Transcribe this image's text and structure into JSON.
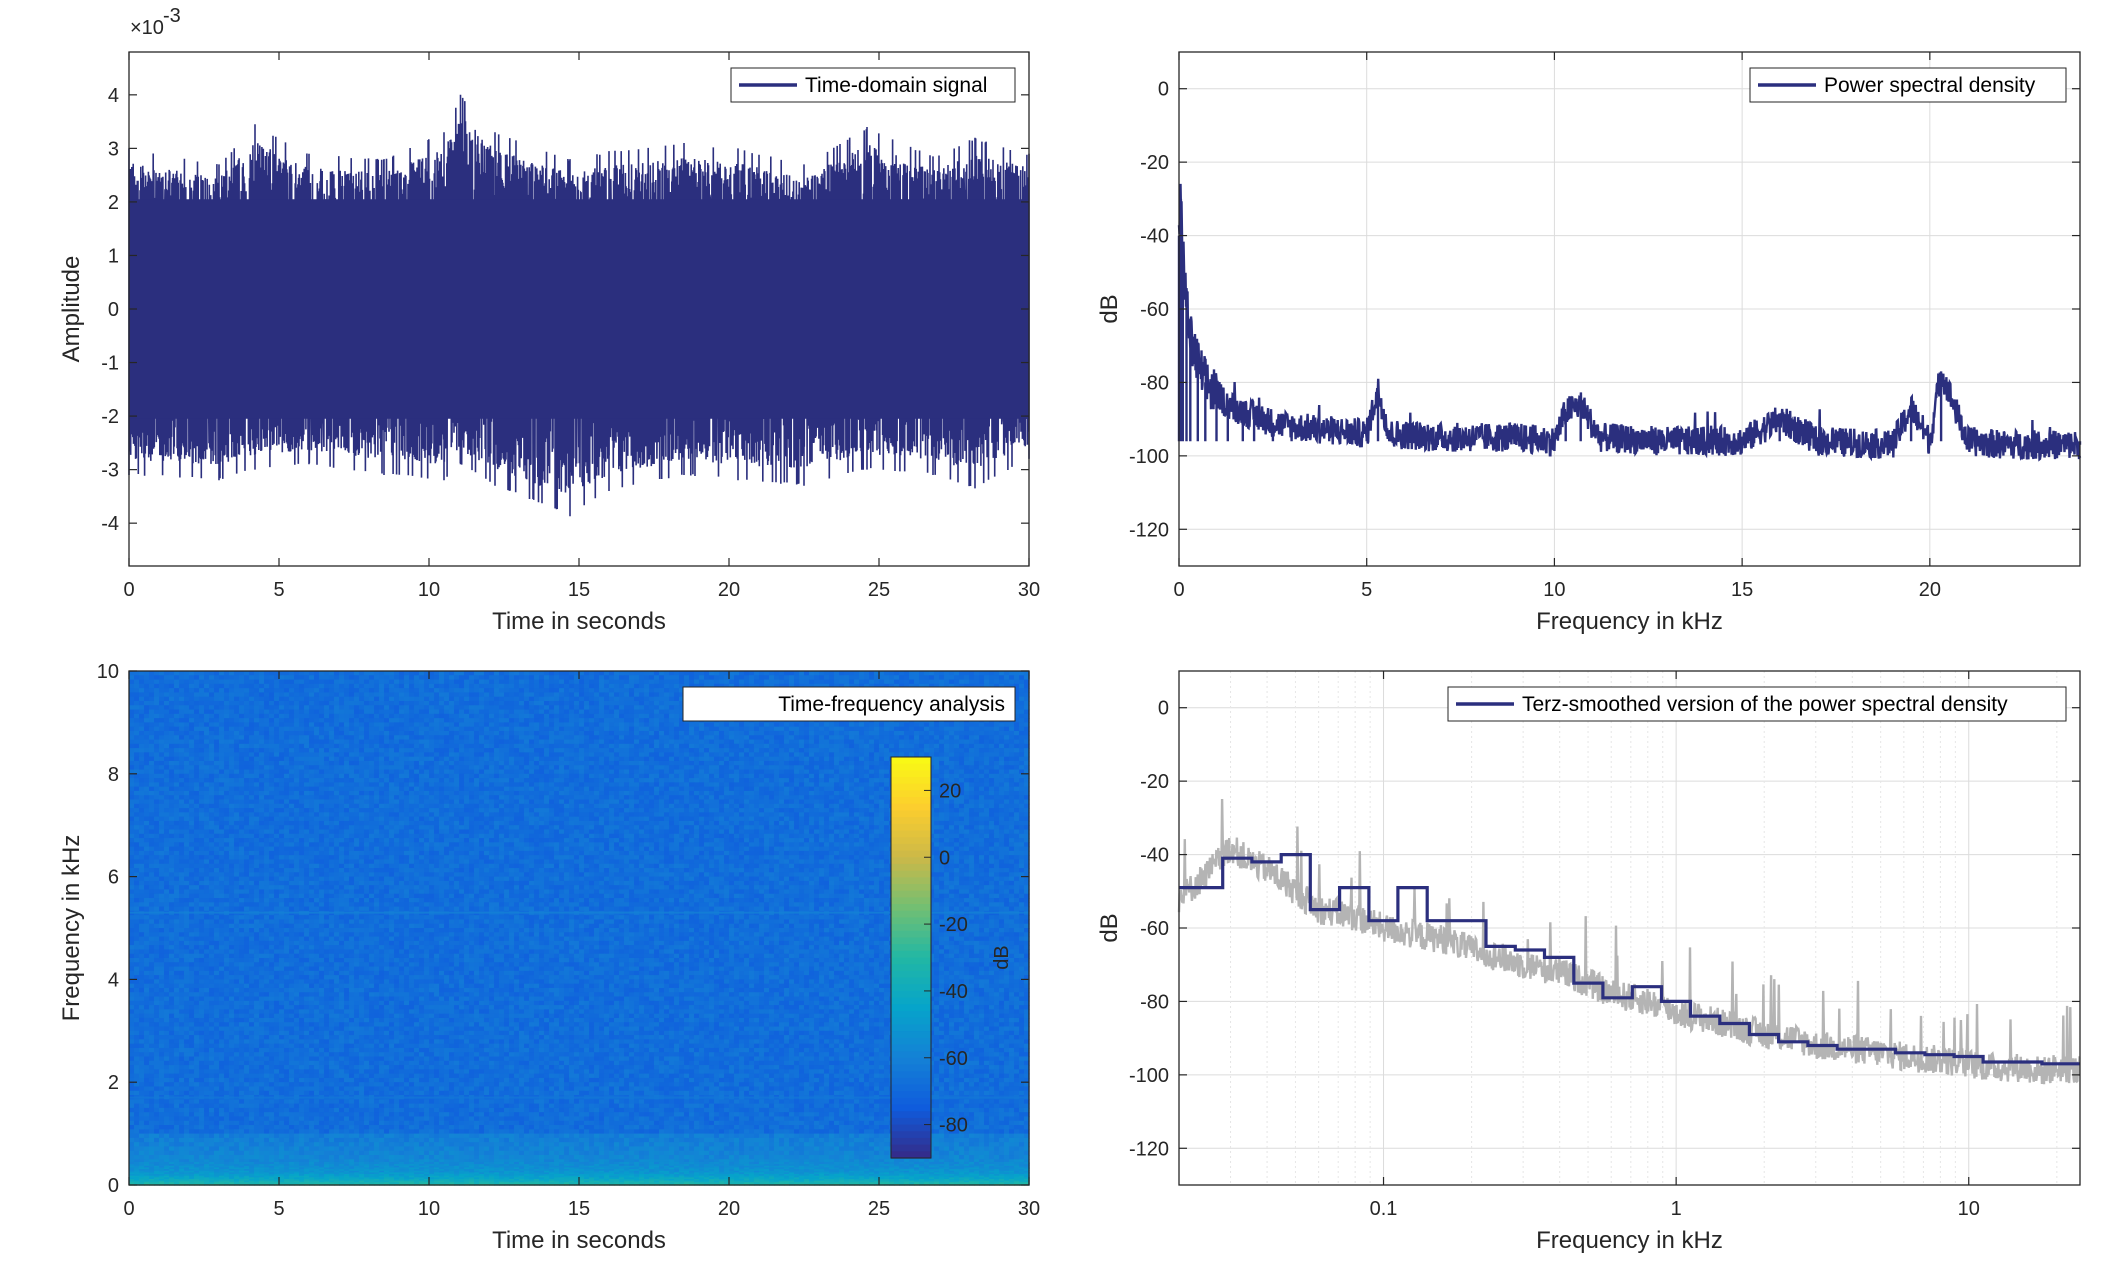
{
  "colors": {
    "series": "#2b2f7e",
    "raw": "#b4b4b4",
    "axis": "#262626",
    "grid": "#dcdcdc"
  },
  "chart_data": [
    {
      "type": "line",
      "legend": [
        "Time-domain signal"
      ],
      "xlabel": "Time in seconds",
      "ylabel": "Amplitude",
      "exponent_label": "×10",
      "exponent_power": "-3",
      "xlim": [
        0,
        30
      ],
      "ylim": [
        -4.8,
        4.8
      ],
      "xticks": [
        0,
        5,
        10,
        15,
        20,
        25,
        30
      ],
      "yticks": [
        -4,
        -3,
        -2,
        -1,
        0,
        1,
        2,
        3,
        4
      ],
      "grid": false,
      "legend_position": "top-right",
      "series": [
        {
          "name": "Time-domain signal",
          "envelope": "dense noise",
          "x": [
            0,
            3,
            4.2,
            6,
            8.5,
            10.5,
            11.05,
            12.2,
            14.7,
            16,
            18.5,
            20.3,
            22.5,
            24.6,
            26.8,
            28.2,
            30
          ],
          "upper": [
            3.0,
            2.7,
            3.45,
            2.9,
            2.8,
            3.3,
            4.0,
            3.3,
            2.8,
            2.95,
            3.1,
            3.0,
            2.7,
            3.4,
            2.85,
            3.2,
            2.9
          ],
          "lower": [
            -3.1,
            -3.2,
            -3.0,
            -2.9,
            -3.1,
            -3.2,
            -2.9,
            -3.3,
            -3.87,
            -3.4,
            -3.1,
            -3.2,
            -3.3,
            -3.0,
            -3.1,
            -3.35,
            -2.8
          ]
        }
      ]
    },
    {
      "type": "line",
      "legend": [
        "Power spectral density"
      ],
      "xlabel": "Frequency in kHz",
      "ylabel": "dB",
      "xlim": [
        0,
        24
      ],
      "ylim": [
        -130,
        10
      ],
      "xticks": [
        0,
        5,
        10,
        15,
        20
      ],
      "yticks": [
        0,
        -20,
        -40,
        -60,
        -80,
        -100,
        -120
      ],
      "grid": true,
      "legend_position": "top-right",
      "series": [
        {
          "name": "Power spectral density",
          "x": [
            0,
            0.05,
            0.1,
            0.2,
            0.3,
            0.5,
            0.7,
            1.0,
            1.3,
            1.7,
            2.0,
            2.5,
            3,
            4,
            5,
            5.3,
            5.6,
            7,
            9,
            10.0,
            10.3,
            10.7,
            11.2,
            13,
            15,
            16.0,
            17,
            19.0,
            19.5,
            20.0,
            20.3,
            21,
            22,
            24
          ],
          "y": [
            -40,
            -30,
            -45,
            -58,
            -68,
            -75,
            -80,
            -83,
            -86,
            -88,
            -89,
            -91,
            -92,
            -93,
            -94,
            -82,
            -94,
            -95,
            -95,
            -96,
            -88,
            -86,
            -95,
            -96,
            -96,
            -90,
            -96,
            -97,
            -87,
            -96,
            -77,
            -96,
            -97,
            -97
          ]
        }
      ]
    },
    {
      "type": "heatmap",
      "legend": [
        "Time-frequency analysis"
      ],
      "xlabel": "Time in seconds",
      "ylabel": "Frequency in kHz",
      "colorbar_label": "dB",
      "xlim": [
        0,
        30
      ],
      "ylim": [
        0,
        10
      ],
      "xticks": [
        0,
        5,
        10,
        15,
        20,
        25,
        30
      ],
      "yticks": [
        0,
        2,
        4,
        6,
        8,
        10
      ],
      "colorbar_ticks": [
        20,
        0,
        -20,
        -40,
        -60,
        -80
      ],
      "colorbar_range": [
        -90,
        30
      ],
      "legend_position": "top-right",
      "colorbar_position": "inside right",
      "background_level_db": -68,
      "low_frequency_band": [
        {
          "freq_khz": 0.0,
          "db": -30
        },
        {
          "freq_khz": 0.1,
          "db": -42
        },
        {
          "freq_khz": 0.25,
          "db": -52
        },
        {
          "freq_khz": 0.5,
          "db": -58
        },
        {
          "freq_khz": 1.0,
          "db": -62
        }
      ],
      "lines": [
        {
          "freq_khz": 5.3,
          "db": -60
        },
        {
          "freq_khz": 1.7,
          "db": -64
        }
      ]
    },
    {
      "type": "line",
      "legend": [
        "Terz-smoothed version of the power spectral density"
      ],
      "xlabel": "Frequency in kHz",
      "ylabel": "dB",
      "xscale": "log",
      "xlim": [
        0.02,
        24
      ],
      "ylim": [
        -130,
        10
      ],
      "xticks": [
        0.1,
        1,
        10
      ],
      "xtick_labels": [
        "0.1",
        "1",
        "10"
      ],
      "yticks": [
        0,
        -20,
        -40,
        -60,
        -80,
        -100,
        -120
      ],
      "grid": true,
      "legend_position": "top-right",
      "series": [
        {
          "name": "raw",
          "x": [
            0.02,
            0.025,
            0.03,
            0.035,
            0.04,
            0.05,
            0.06,
            0.08,
            0.1,
            0.13,
            0.16,
            0.2,
            0.25,
            0.3,
            0.4,
            0.5,
            0.6,
            0.8,
            1.0,
            1.3,
            1.6,
            2.0,
            2.5,
            3.0,
            4,
            5,
            6,
            8,
            10,
            12,
            15,
            18,
            20,
            24
          ],
          "y": [
            -52,
            -45,
            -38,
            -42,
            -44,
            -50,
            -55,
            -57,
            -60,
            -62,
            -63,
            -66,
            -68,
            -70,
            -72,
            -75,
            -78,
            -80,
            -83,
            -85,
            -87,
            -89,
            -90,
            -92,
            -93,
            -94,
            -95,
            -96,
            -97,
            -98,
            -98,
            -99,
            -98,
            -99
          ]
        },
        {
          "name": "Terz-smoothed version of the power spectral density",
          "x": [
            0.02,
            0.0282,
            0.0355,
            0.0447,
            0.0562,
            0.0708,
            0.0891,
            0.112,
            0.141,
            0.178,
            0.224,
            0.282,
            0.355,
            0.447,
            0.562,
            0.708,
            0.891,
            1.12,
            1.41,
            1.78,
            2.24,
            2.82,
            3.55,
            4.47,
            5.62,
            7.08,
            8.91,
            11.2,
            14.1,
            17.8,
            24
          ],
          "y": [
            -49,
            -41,
            -42,
            -40,
            -55,
            -49,
            -58,
            -49,
            -58,
            -58,
            -65,
            -66,
            -68,
            -75,
            -79,
            -76,
            -80,
            -84,
            -86,
            -89,
            -91,
            -92,
            -93,
            -93,
            -94,
            -94.5,
            -95,
            -96.5,
            -96.5,
            -97,
            -97
          ]
        }
      ]
    }
  ]
}
